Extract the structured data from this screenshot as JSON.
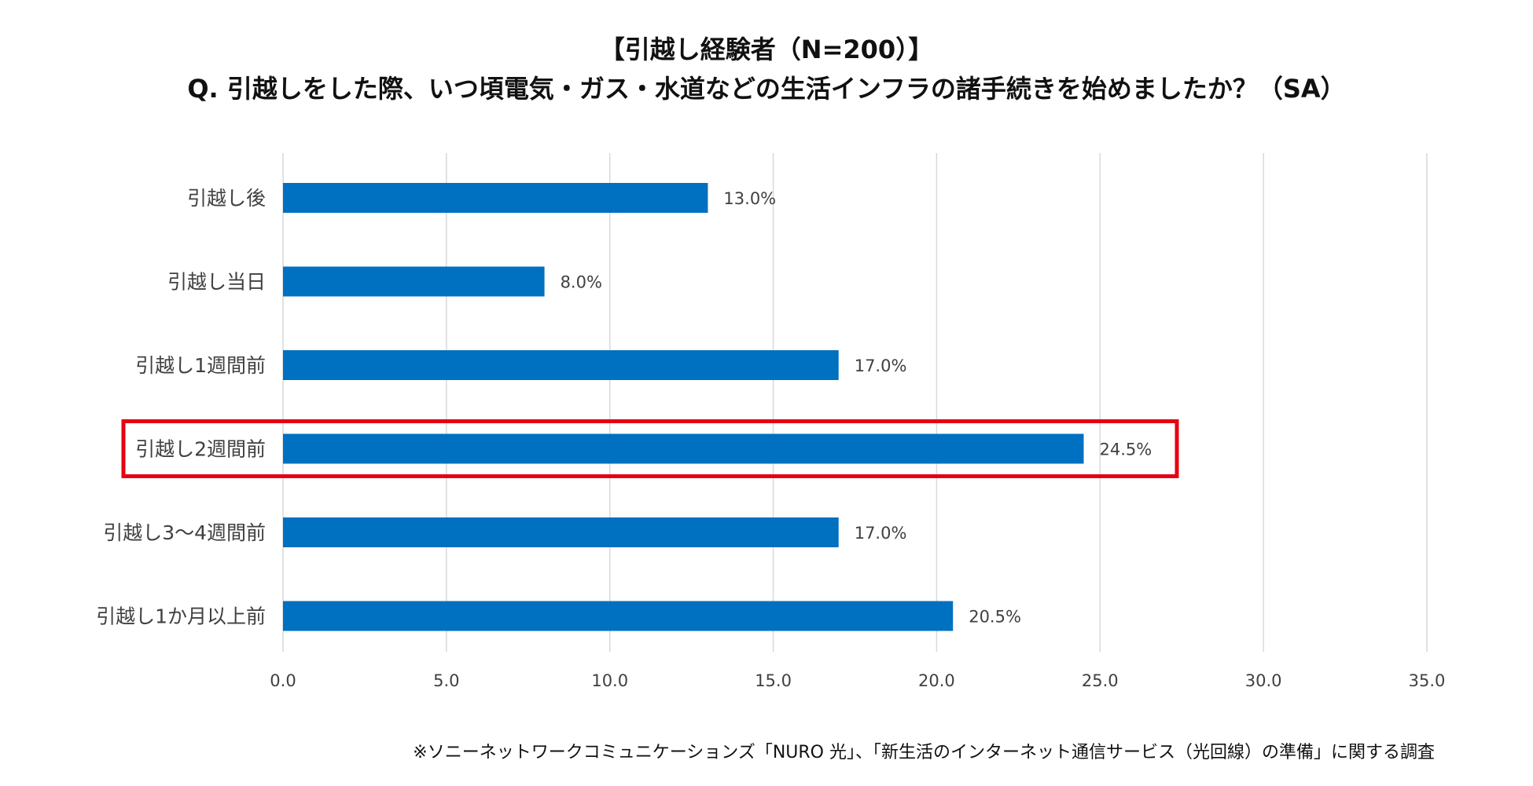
{
  "header": {
    "title_line1": "【引越し経験者（N=200）】",
    "title_line2": "Q. 引越しをした際、いつ頃電気・ガス・水道などの生活インフラの諸手続きを始めましたか？（SA）"
  },
  "chart_data": {
    "type": "bar",
    "orientation": "horizontal",
    "title": "Q. 引越しをした際、いつ頃電気・ガス・水道などの生活インフラの諸手続きを始めましたか？（SA）",
    "categories": [
      "引越し後",
      "引越し当日",
      "引越し1週間前",
      "引越し2週間前",
      "引越し3～4週間前",
      "引越し1か月以上前"
    ],
    "values": [
      13.0,
      8.0,
      17.0,
      24.5,
      17.0,
      20.5
    ],
    "data_labels": [
      "13.0%",
      "8.0%",
      "17.0%",
      "24.5%",
      "17.0%",
      "20.5%"
    ],
    "xlim": [
      0,
      35
    ],
    "x_ticks": [
      "0.0",
      "5.0",
      "10.0",
      "15.0",
      "20.0",
      "25.0",
      "30.0",
      "35.0"
    ],
    "xlabel": "",
    "ylabel": "",
    "grid": true,
    "highlight_category": "引越し2週間前",
    "colors": {
      "bar": "#0070C0",
      "grid": "#D9D9D9",
      "highlight": "#E60012",
      "text": "#404040"
    }
  },
  "footnote": "※ソニーネットワークコミュニケーションズ「NURO 光」、「新生活のインターネット通信サービス（光回線）の準備」に関する調査"
}
